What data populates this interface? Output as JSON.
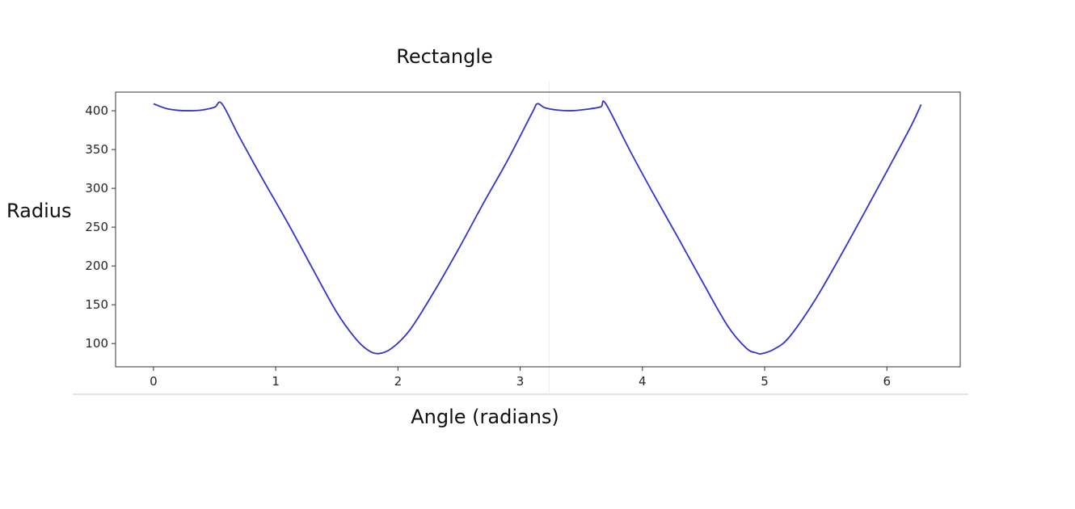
{
  "chart_data": {
    "type": "line",
    "title": "Rectangle",
    "xlabel": "Angle (radians)",
    "ylabel": "Radius",
    "xlim": [
      -0.31,
      6.6
    ],
    "ylim": [
      70,
      424
    ],
    "xticks": [
      0,
      1,
      2,
      3,
      4,
      5,
      6
    ],
    "yticks": [
      100,
      150,
      200,
      250,
      300,
      350,
      400
    ],
    "grid": false,
    "legend": "none",
    "series": [
      {
        "name": "radius",
        "color": "#3333cc",
        "x": [
          0,
          0.1,
          0.2,
          0.3,
          0.4,
          0.5,
          0.56,
          0.7,
          0.9,
          1.1,
          1.3,
          1.5,
          1.65,
          1.75,
          1.84,
          1.95,
          2.1,
          2.3,
          2.5,
          2.7,
          2.9,
          3.1,
          3.14,
          3.2,
          3.3,
          3.42,
          3.55,
          3.66,
          3.7,
          3.9,
          4.1,
          4.3,
          4.5,
          4.7,
          4.85,
          4.93,
          4.98,
          5.08,
          5.2,
          5.4,
          5.6,
          5.8,
          6.0,
          6.2,
          6.28
        ],
        "y": [
          409,
          403,
          400.5,
          400,
          401,
          404.5,
          409,
          367,
          310,
          255,
          197,
          140,
          107,
          92,
          87,
          94,
          118,
          168,
          223,
          281,
          337,
          398,
          409,
          404,
          401,
          400,
          402,
          405,
          409,
          348,
          290,
          234,
          177,
          122,
          94,
          88,
          87,
          93,
          108,
          153,
          207,
          264,
          322,
          381,
          408
        ]
      }
    ]
  }
}
